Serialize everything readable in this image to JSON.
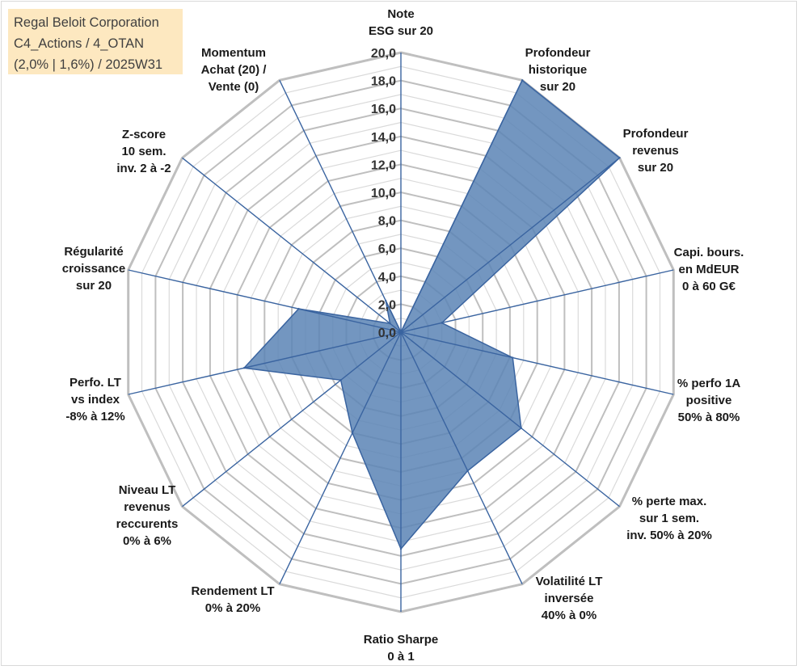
{
  "chart_data": {
    "type": "radar",
    "title": [
      "Regal Beloit Corporation",
      "C4_Actions / 4_OTAN",
      "(2,0% | 1,6%) / 2025W31"
    ],
    "range": [
      0,
      20
    ],
    "ticks": [
      "0,0",
      "2,0",
      "4,0",
      "6,0",
      "8,0",
      "10,0",
      "12,0",
      "14,0",
      "16,0",
      "18,0",
      "20,0"
    ],
    "axes": [
      {
        "label": [
          "Note",
          "ESG sur 20"
        ]
      },
      {
        "label": [
          "Profondeur",
          "historique",
          "sur 20"
        ]
      },
      {
        "label": [
          "Profondeur",
          "revenus",
          "sur 20"
        ]
      },
      {
        "label": [
          "Capi. bours.",
          "en MdEUR",
          "0 à 60 G€"
        ]
      },
      {
        "label": [
          "% perfo 1A",
          "positive",
          "50% à 80%"
        ]
      },
      {
        "label": [
          "% perte max.",
          "sur 1 sem.",
          "inv. 50% à 20%"
        ]
      },
      {
        "label": [
          "Volatilité LT",
          "inversée",
          "40% à 0%"
        ]
      },
      {
        "label": [
          "Ratio Sharpe",
          "0 à 1"
        ]
      },
      {
        "label": [
          "Rendement LT",
          "0% à 20%"
        ]
      },
      {
        "label": [
          "Niveau LT",
          "revenus",
          "reccurents",
          "0% à 6%"
        ]
      },
      {
        "label": [
          "Perfo. LT",
          "vs index",
          "-8% à 12%"
        ]
      },
      {
        "label": [
          "Régularité",
          "croissance",
          "sur 20"
        ]
      },
      {
        "label": [
          "Z-score",
          "10 sem.",
          "inv. 2 à -2"
        ]
      },
      {
        "label": [
          "Momentum",
          "Achat (20) /",
          "Vente (0)"
        ]
      }
    ],
    "series": [
      {
        "values": [
          0.0,
          20.0,
          20.0,
          3.0,
          8.2,
          11.0,
          11.0,
          15.5,
          8.0,
          5.5,
          11.5,
          7.5,
          1.0,
          2.5
        ]
      }
    ],
    "colors": {
      "fill": "#5b84b5",
      "stroke": "#3a64a0",
      "spoke": "#3a64a0",
      "grid_major": "#bfbfbf",
      "grid_minor": "#dadada"
    }
  }
}
